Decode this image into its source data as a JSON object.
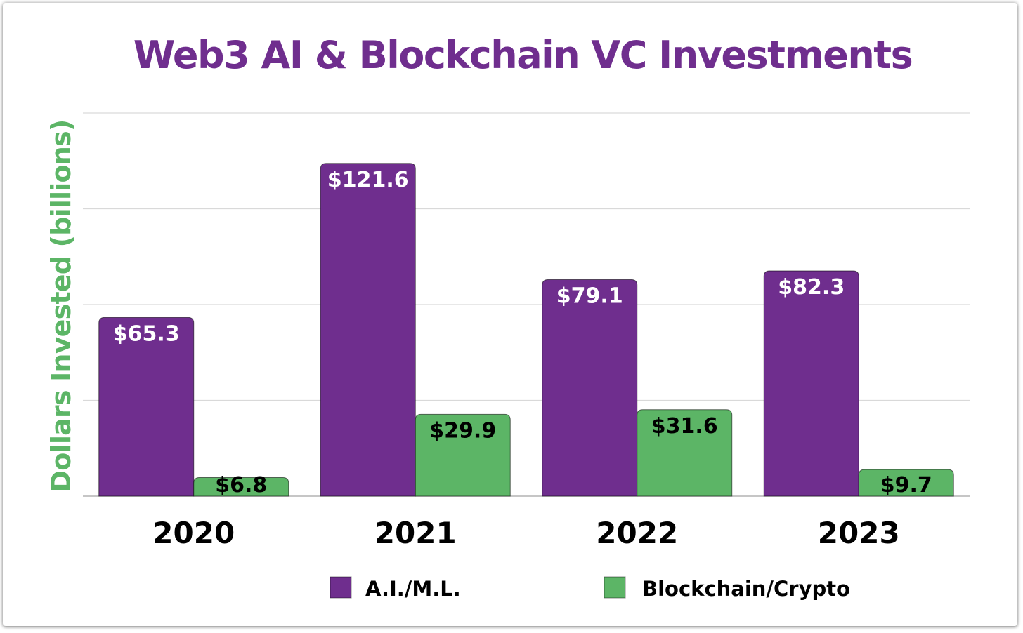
{
  "chart_data": {
    "type": "bar",
    "title": "Web3 AI & Blockchain VC Investments",
    "ylabel": "Dollars Invested (billions)",
    "xlabel": "",
    "categories": [
      "2020",
      "2021",
      "2022",
      "2023"
    ],
    "series": [
      {
        "name": "A.I./M.L.",
        "values": [
          65.3,
          121.6,
          79.1,
          82.3
        ],
        "labels": [
          "$65.3",
          "$121.6",
          "$79.1",
          "$82.3"
        ],
        "color": "#6f2e8e",
        "label_color": "#ffffff"
      },
      {
        "name": "Blockchain/Crypto",
        "values": [
          6.8,
          29.9,
          31.6,
          9.7
        ],
        "labels": [
          "$6.8",
          "$29.9",
          "$31.6",
          "$9.7"
        ],
        "color": "#5cb566",
        "label_color": "#000000"
      }
    ],
    "ylim": [
      0,
      140
    ],
    "grid": true,
    "legend": "bottom-center",
    "colors": {
      "title": "#6f2e8e",
      "ylabel": "#5cb566",
      "grid": "#d9d9d9",
      "axis": "#b3b3b3",
      "tick": "#000000"
    }
  }
}
